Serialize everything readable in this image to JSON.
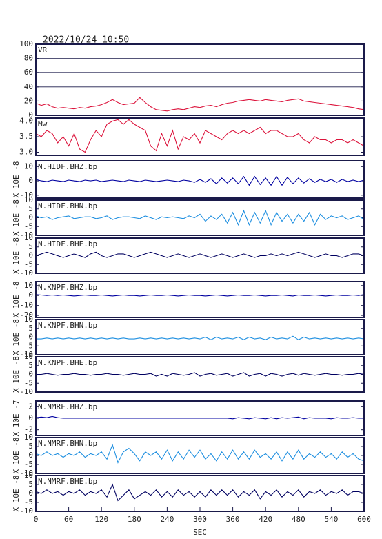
{
  "title": "2022/10/24 10:50",
  "x_axis": {
    "label": "SEC",
    "xlim": [
      0,
      600
    ],
    "xticks": [
      0,
      60,
      120,
      180,
      240,
      300,
      360,
      420,
      480,
      540,
      600
    ],
    "x": [
      0,
      10,
      20,
      30,
      40,
      50,
      60,
      70,
      80,
      90,
      100,
      110,
      120,
      130,
      140,
      150,
      160,
      170,
      180,
      190,
      200,
      210,
      220,
      230,
      240,
      250,
      260,
      270,
      280,
      290,
      300,
      310,
      320,
      330,
      340,
      350,
      360,
      370,
      380,
      390,
      400,
      410,
      420,
      430,
      440,
      450,
      460,
      470,
      480,
      490,
      500,
      510,
      520,
      530,
      540,
      550,
      560,
      570,
      580,
      590,
      600
    ]
  },
  "chart_data": [
    {
      "type": "line",
      "title": "VR",
      "color": "#dc143c",
      "ylim": [
        0,
        100
      ],
      "yticks": [
        0,
        20,
        40,
        60,
        80,
        100
      ],
      "grid": true,
      "values": [
        17,
        14,
        16,
        12,
        10,
        11,
        10,
        9,
        11,
        10,
        12,
        13,
        15,
        18,
        22,
        18,
        15,
        16,
        17,
        25,
        18,
        12,
        8,
        7,
        6,
        8,
        9,
        8,
        10,
        12,
        11,
        13,
        14,
        12,
        15,
        17,
        18,
        20,
        21,
        22,
        21,
        20,
        22,
        21,
        20,
        19,
        21,
        22,
        23,
        20,
        19,
        18,
        17,
        16,
        15,
        14,
        13,
        12,
        11,
        9,
        8
      ]
    },
    {
      "type": "line",
      "title": "Mw",
      "color": "#dc143c",
      "ylim": [
        2.9,
        4.1
      ],
      "yticks": [
        {
          "value": 3,
          "label": "3.0"
        },
        3.5,
        {
          "value": 4,
          "label": "4.0"
        }
      ],
      "grid": false,
      "values": [
        3.6,
        3.5,
        3.7,
        3.6,
        3.3,
        3.5,
        3.2,
        3.6,
        3.1,
        3.0,
        3.4,
        3.7,
        3.5,
        3.9,
        4.0,
        4.05,
        3.9,
        4.05,
        3.9,
        3.8,
        3.7,
        3.2,
        3.05,
        3.6,
        3.2,
        3.7,
        3.1,
        3.5,
        3.4,
        3.6,
        3.3,
        3.7,
        3.6,
        3.5,
        3.4,
        3.6,
        3.7,
        3.6,
        3.7,
        3.6,
        3.7,
        3.8,
        3.6,
        3.7,
        3.7,
        3.6,
        3.5,
        3.5,
        3.6,
        3.4,
        3.3,
        3.5,
        3.4,
        3.4,
        3.3,
        3.4,
        3.4,
        3.3,
        3.4,
        3.3,
        3.2
      ]
    },
    {
      "type": "line",
      "title": "N.HIDF.BHZ.bp",
      "ylabel": "X 10E -8",
      "color": "#0000a0",
      "ylim": [
        -12,
        14
      ],
      "yticks": [
        -10,
        0,
        10
      ],
      "grid": false,
      "values": [
        1,
        0,
        -0.5,
        0.5,
        0,
        -0.5,
        0.5,
        0,
        -0.5,
        0.5,
        0,
        0.5,
        -0.5,
        0,
        0.5,
        0,
        -0.5,
        0.5,
        0,
        -0.5,
        0.5,
        0,
        -0.5,
        0,
        0.5,
        0,
        -0.5,
        0.5,
        0,
        -1,
        1,
        -1,
        1.5,
        -2,
        2,
        -1.5,
        2,
        -2,
        3,
        -3,
        3,
        -2.5,
        2,
        -3,
        3,
        -3,
        2.5,
        -2,
        2,
        -1.5,
        1.5,
        -1,
        1,
        -0.5,
        1,
        -1,
        1,
        -0.5,
        0.5,
        -0.5,
        0.5
      ]
    },
    {
      "type": "line",
      "title": "N.HIDF.BHN.bp",
      "ylabel": "X 10E -8",
      "color": "#1e8fe0",
      "ylim": [
        -10,
        10
      ],
      "yticks": [
        -10,
        -5,
        0,
        5,
        10
      ],
      "grid": false,
      "values": [
        1,
        0,
        0.5,
        -1,
        0,
        0.5,
        1,
        -0.5,
        0,
        0.5,
        0.5,
        -0.5,
        0,
        1,
        -1,
        0,
        0.5,
        0.5,
        0,
        -0.5,
        1,
        0,
        -1,
        0.5,
        0,
        0.5,
        0,
        -0.5,
        1,
        0,
        2,
        -2,
        1,
        -1,
        2,
        -3,
        3,
        -4,
        4,
        -4,
        3,
        -3,
        4,
        -4,
        3,
        -2,
        2,
        -3,
        2,
        -2,
        3,
        -4,
        2,
        -1,
        1,
        0,
        1,
        -1,
        0,
        1,
        -1
      ]
    },
    {
      "type": "line",
      "title": "N.HIDF.BHE.bp",
      "ylabel": "X 10E -8",
      "color": "#000060",
      "ylim": [
        -10,
        10
      ],
      "yticks": [
        -10,
        -5,
        0,
        5,
        10
      ],
      "grid": false,
      "values": [
        0,
        1,
        2,
        1,
        0,
        -1,
        0,
        1,
        0,
        -1,
        1,
        2,
        0,
        -1,
        0,
        1,
        1,
        0,
        -1,
        0,
        1,
        2,
        1,
        0,
        -1,
        0,
        1,
        0,
        -1,
        0,
        1,
        0,
        -1,
        0,
        1,
        0,
        -1,
        0,
        1,
        0,
        -1,
        0,
        0,
        1,
        0,
        1,
        0,
        1,
        2,
        1,
        0,
        -1,
        0,
        1,
        0,
        0,
        -1,
        0,
        1,
        1,
        0
      ]
    },
    {
      "type": "line",
      "title": "N.KNPF.BHZ.bp",
      "ylabel": "X 10E -8",
      "color": "#0000a0",
      "ylim": [
        -22,
        14
      ],
      "yticks": [
        -20,
        -10,
        0,
        10
      ],
      "grid": false,
      "values": [
        1,
        0.5,
        0,
        0.5,
        0,
        0.5,
        0,
        -0.5,
        0,
        0.5,
        0,
        0,
        0.5,
        0,
        -0.5,
        0,
        0.5,
        0,
        0,
        -0.5,
        0,
        0.5,
        0,
        0,
        0.5,
        0,
        -0.5,
        0,
        0.5,
        0,
        0,
        -0.5,
        0,
        0.5,
        0,
        -0.5,
        0,
        0.5,
        0,
        0,
        0.5,
        0,
        -0.5,
        0,
        0,
        0.5,
        0,
        -0.5,
        0.5,
        0,
        0,
        0.5,
        0,
        -0.5,
        0,
        0.5,
        0,
        0,
        0.5,
        0,
        1
      ]
    },
    {
      "type": "line",
      "title": "N.KNPF.BHN.bp",
      "ylabel": "X 10E -8",
      "color": "#1e8fe0",
      "ylim": [
        -10,
        10
      ],
      "yticks": [
        -10,
        -5,
        0,
        5,
        10
      ],
      "grid": false,
      "values": [
        -1,
        -1,
        -0.5,
        -1,
        -0.5,
        -1,
        -0.5,
        -1,
        -0.5,
        -1,
        -0.5,
        -1,
        -0.5,
        -1,
        -0.5,
        -1,
        -0.5,
        -1,
        -1,
        -0.5,
        -1,
        -0.5,
        -1,
        -0.5,
        -1,
        -0.5,
        -1,
        -0.5,
        -1,
        -0.5,
        -1,
        0,
        -1.5,
        0,
        -1,
        -0.5,
        -1,
        0,
        -1.5,
        0,
        -1,
        -0.5,
        -1.5,
        0,
        -1,
        -0.5,
        -1,
        0.5,
        -1.5,
        0,
        -1,
        -0.5,
        -1,
        -0.5,
        -1,
        -0.5,
        -1,
        -0.5,
        -1,
        -0.5,
        -1
      ]
    },
    {
      "type": "line",
      "title": "N.KNPF.BHE.bp",
      "ylabel": "X 10E -8",
      "color": "#000060",
      "ylim": [
        -10,
        10
      ],
      "yticks": [
        -10,
        -5,
        0,
        5,
        10
      ],
      "grid": false,
      "values": [
        0,
        0,
        0.5,
        0,
        -0.5,
        0,
        0,
        0.5,
        0,
        0,
        -0.5,
        0,
        0,
        0.5,
        0,
        0,
        -0.5,
        0,
        0.5,
        0,
        0,
        0.5,
        -1,
        0,
        -1,
        0.5,
        0,
        -0.5,
        0,
        1,
        -1,
        0,
        0.5,
        -0.5,
        0,
        0.5,
        -1,
        0,
        1,
        -1,
        0,
        0.5,
        -1,
        0.5,
        0,
        -1,
        0,
        0.5,
        -0.5,
        0.5,
        0,
        -0.5,
        0,
        0.5,
        0,
        0,
        -0.5,
        0,
        0,
        0.5,
        0
      ]
    },
    {
      "type": "line",
      "title": "N.NMRF.BHZ.bp",
      "ylabel": "X 10E -7",
      "color": "#0000a0",
      "ylim": [
        -3,
        3
      ],
      "yticks": [
        -2,
        0,
        2
      ],
      "grid": false,
      "values": [
        0.1,
        0.2,
        0.1,
        0.3,
        0.1,
        0,
        0,
        0,
        0,
        0,
        0,
        0,
        0,
        0,
        0,
        0,
        0,
        0,
        0,
        0,
        0,
        0,
        0,
        0,
        0,
        0,
        0,
        0,
        0,
        0,
        0,
        0,
        0,
        0,
        0,
        0,
        -0.1,
        0.1,
        0,
        -0.1,
        0.1,
        0,
        -0.1,
        0.1,
        -0.1,
        0.1,
        0,
        0.1,
        0.2,
        -0.1,
        0.1,
        0,
        0,
        0,
        -0.1,
        0.1,
        0,
        0,
        0.1,
        0,
        0
      ]
    },
    {
      "type": "line",
      "title": "N.NMRF.BHN.bp",
      "ylabel": "X 10E -8",
      "color": "#1e8fe0",
      "ylim": [
        -10,
        10
      ],
      "yticks": [
        -10,
        -5,
        0,
        5,
        10
      ],
      "grid": false,
      "values": [
        1,
        0,
        2,
        0,
        1,
        -1,
        1,
        0,
        2,
        -1,
        1,
        0,
        2,
        -2,
        6,
        -4,
        2,
        4,
        1,
        -3,
        2,
        0,
        2,
        -2,
        3,
        -3,
        2,
        -2,
        3,
        -1,
        3,
        -2,
        1,
        -3,
        2,
        -2,
        3,
        -2,
        2,
        -2,
        3,
        -1,
        1,
        -2,
        2,
        -3,
        2,
        -2,
        3,
        -2,
        1,
        -1,
        2,
        -1,
        1,
        -2,
        2,
        -1,
        1,
        -2,
        -3
      ]
    },
    {
      "type": "line",
      "title": "N.NMRF.BHE.bp",
      "ylabel": "X 10E -8",
      "color": "#000060",
      "ylim": [
        -10,
        10
      ],
      "yticks": [
        -10,
        -5,
        0,
        5,
        10
      ],
      "grid": false,
      "values": [
        1,
        0,
        2,
        0,
        1,
        -1,
        1,
        0,
        2,
        -1,
        1,
        0,
        2,
        -2,
        5,
        -4,
        -1,
        2,
        -3,
        -1,
        1,
        -1,
        2,
        -2,
        1,
        -2,
        2,
        -1,
        1,
        -2,
        1,
        -2,
        2,
        -1,
        2,
        -1,
        2,
        -2,
        1,
        -1,
        2,
        -3,
        1,
        -1,
        2,
        -2,
        1,
        -1,
        2,
        -2,
        1,
        0,
        2,
        -1,
        1,
        0,
        2,
        -1,
        1,
        1,
        0
      ]
    }
  ]
}
